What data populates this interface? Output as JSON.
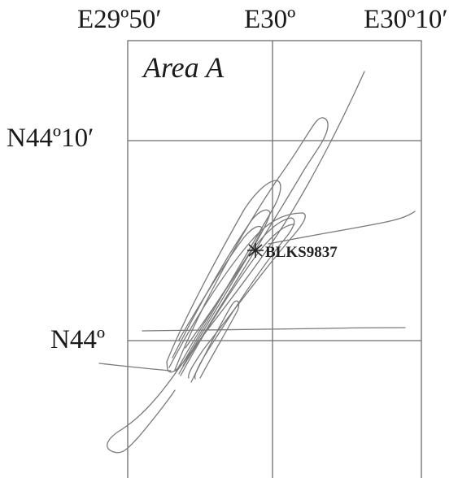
{
  "map": {
    "area_title": "Area A",
    "longitude_labels": [
      "E29º50′",
      "E30º",
      "E30º10′"
    ],
    "latitude_labels": [
      "N44º10′",
      "N44º"
    ],
    "station": {
      "id": "BLKS9837",
      "symbol": "*"
    },
    "colors": {
      "track": "#7a7a7a",
      "grid": "#6e6e6e",
      "text": "#1a1a1a"
    }
  }
}
